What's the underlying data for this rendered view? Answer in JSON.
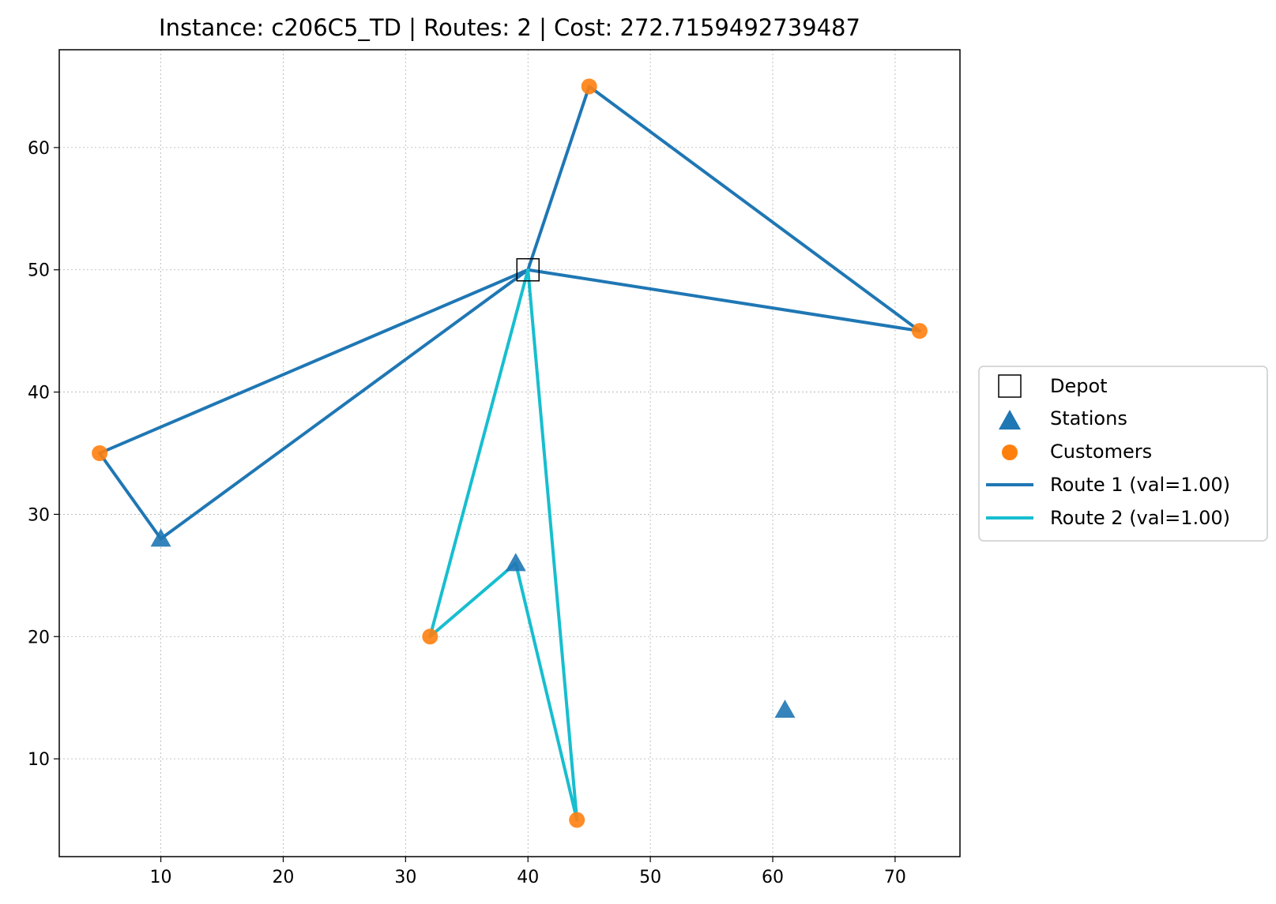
{
  "chart_data": {
    "type": "scatter",
    "title": "Instance: c206C5_TD  |  Routes: 2  |  Cost: 272.7159492739487",
    "xlabel": "",
    "ylabel": "",
    "xlim": [
      1.7,
      75.3
    ],
    "ylim": [
      2.0,
      68.0
    ],
    "x_ticks": [
      10,
      20,
      30,
      40,
      50,
      60,
      70
    ],
    "y_ticks": [
      10,
      20,
      30,
      40,
      50,
      60
    ],
    "grid": true,
    "legend_position": "outside-right",
    "depot": {
      "name": "Depot",
      "x": 40,
      "y": 50
    },
    "stations": {
      "name": "Stations",
      "color": "#1f77b4",
      "points": [
        [
          10,
          28
        ],
        [
          39,
          26
        ],
        [
          61,
          14
        ]
      ]
    },
    "customers": {
      "name": "Customers",
      "color": "#ff7f0e",
      "points": [
        [
          45,
          65
        ],
        [
          72,
          45
        ],
        [
          5,
          35
        ],
        [
          32,
          20
        ],
        [
          44,
          5
        ]
      ]
    },
    "routes": [
      {
        "name": "Route 1 (val=1.00)",
        "color": "#1f77b4",
        "path": [
          [
            40,
            50
          ],
          [
            45,
            65
          ],
          [
            72,
            45
          ],
          [
            40,
            50
          ],
          [
            5,
            35
          ],
          [
            10,
            28
          ],
          [
            40,
            50
          ]
        ]
      },
      {
        "name": "Route 2 (val=1.00)",
        "color": "#17becf",
        "path": [
          [
            40,
            50
          ],
          [
            32,
            20
          ],
          [
            39,
            26
          ],
          [
            44,
            5
          ],
          [
            40,
            50
          ]
        ]
      }
    ]
  }
}
